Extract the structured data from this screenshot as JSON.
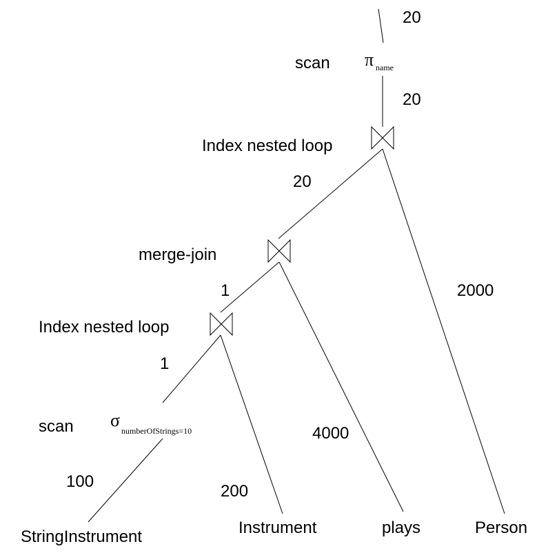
{
  "title": "",
  "algorithms": {
    "top": "scan",
    "join_top": "Index nested loop",
    "join_mid": "merge-join",
    "join_low": "Index nested loop",
    "select": "scan"
  },
  "operators": {
    "projection": {
      "symbol": "π",
      "subscript": "name"
    },
    "selection": {
      "symbol": "σ",
      "subscript": "numberOfStrings=10"
    }
  },
  "cardinalities": {
    "output": "20",
    "proj_in": "20",
    "join_top_left": "20",
    "join_top_right": "2000",
    "join_mid_left": "1",
    "join_mid_right": "4000",
    "join_low_left": "1",
    "join_low_right": "200",
    "select_in": "100"
  },
  "relations": {
    "string_instrument": "StringInstrument",
    "instrument": "Instrument",
    "plays": "plays",
    "person": "Person"
  }
}
